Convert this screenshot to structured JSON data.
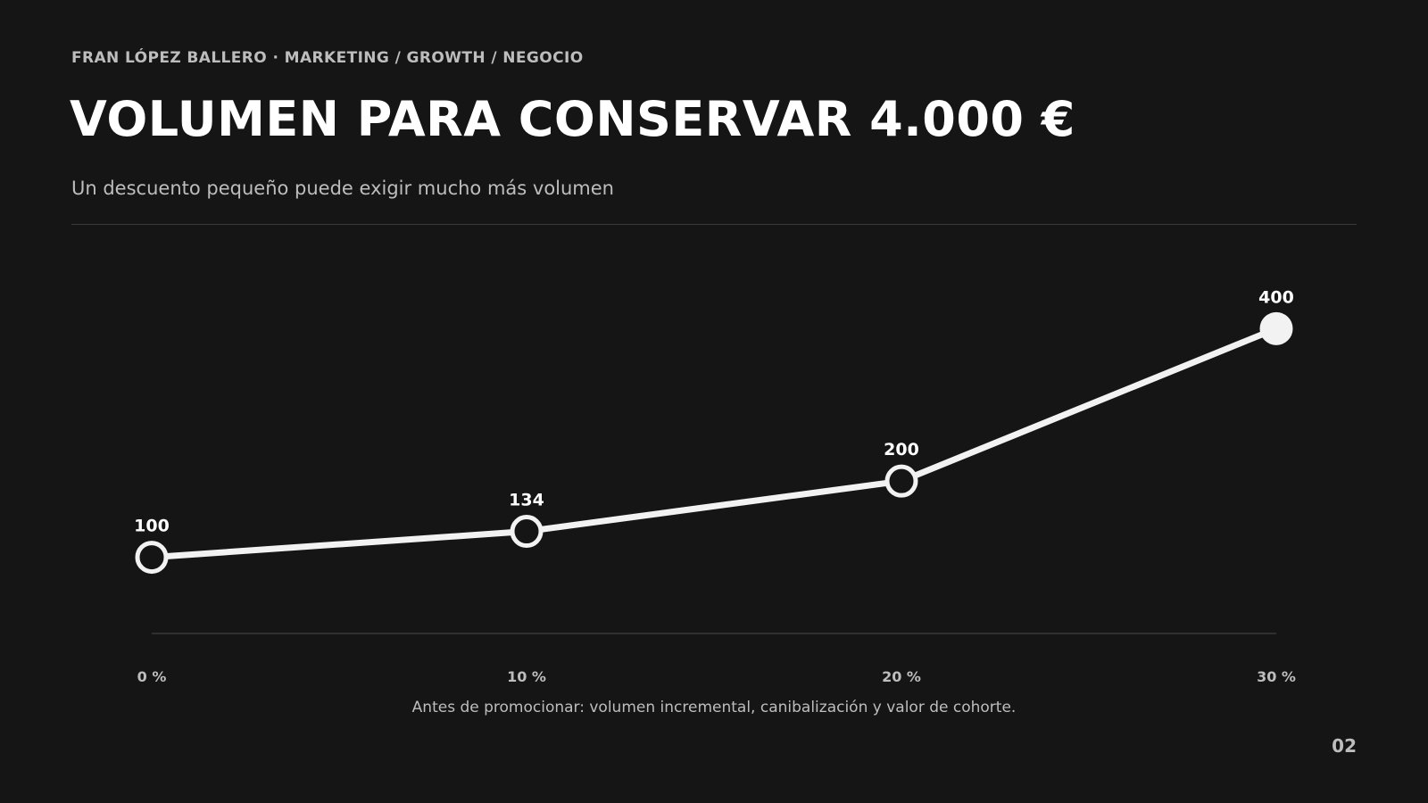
{
  "header": {
    "eyebrow": "FRAN LÓPEZ BALLERO · MARKETING / GROWTH / NEGOCIO",
    "title": "VOLUMEN PARA CONSERVAR 4.000 €",
    "subtitle": "Un descuento pequeño puede exigir mucho más volumen"
  },
  "footer": {
    "note": "Antes de promocionar: volumen incremental, canibalización y valor de cohorte.",
    "page": "02"
  },
  "colors": {
    "background": "#151515",
    "line": "#f2f2f2",
    "muted_text": "#bdbdbd",
    "baseline": "#3a3a3a"
  },
  "chart_data": {
    "type": "line",
    "categories": [
      "0 %",
      "10 %",
      "20 %",
      "30 %"
    ],
    "x": [
      0,
      10,
      20,
      30
    ],
    "values": [
      100,
      134,
      200,
      400
    ],
    "data_labels": [
      "100",
      "134",
      "200",
      "400"
    ],
    "highlight_last_point": true,
    "grid": false
  }
}
